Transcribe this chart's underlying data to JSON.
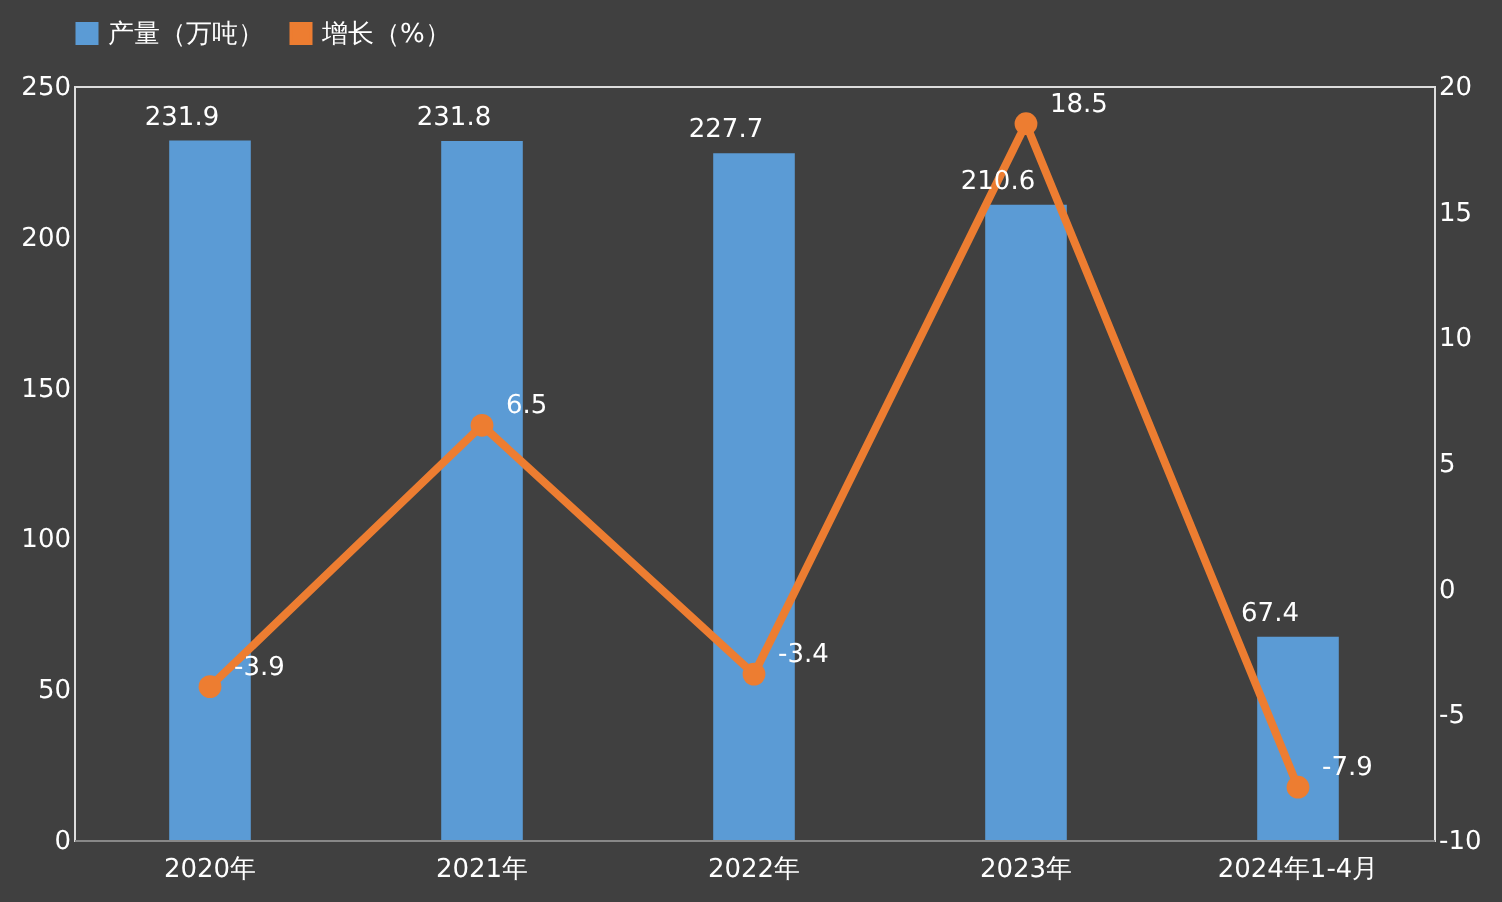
{
  "chart_data": {
    "type": "bar",
    "categories": [
      "2020年",
      "2021年",
      "2022年",
      "2023年",
      "2024年1-4月"
    ],
    "series": [
      {
        "name": "产量（万吨）",
        "color": "#5b9bd5",
        "values": [
          231.9,
          231.8,
          227.7,
          210.6,
          67.4
        ]
      },
      {
        "name": "增长（%）",
        "type": "line",
        "axis": "y2",
        "color": "#ed7d31",
        "values": [
          -3.9,
          6.5,
          -3.4,
          18.5,
          -7.9
        ]
      }
    ],
    "ylim": [
      0,
      250
    ],
    "yticks": [
      0,
      50,
      100,
      150,
      200,
      250
    ],
    "y2lim": [
      -10,
      20
    ],
    "y2ticks": [
      -10,
      -5,
      0,
      5,
      10,
      15,
      20
    ],
    "data_labels": true,
    "legend": "top",
    "marker": "circle",
    "grid": false
  }
}
